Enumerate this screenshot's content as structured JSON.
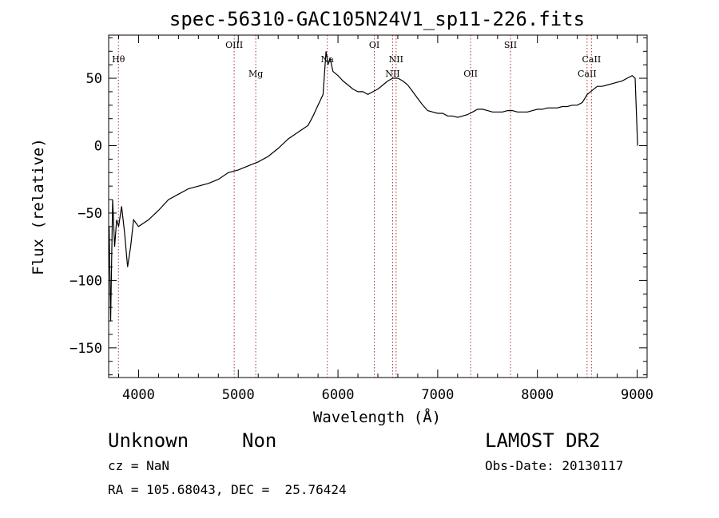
{
  "chart_data": {
    "type": "line",
    "title": "spec-56310-GAC105N24V1_sp11-226.fits",
    "xlabel": "Wavelength (Å)",
    "ylabel": "Flux (relative)",
    "xlim": [
      3700,
      9100
    ],
    "ylim": [
      -172,
      82
    ],
    "xticks": [
      4000,
      5000,
      6000,
      7000,
      8000,
      9000
    ],
    "yticks": [
      -150,
      -100,
      -50,
      0,
      50
    ],
    "xtick_labels": [
      "4000",
      "5000",
      "6000",
      "7000",
      "8000",
      "9000"
    ],
    "ytick_labels": [
      "−150",
      "−100",
      "−50",
      "0",
      "50"
    ],
    "grid": false,
    "line_color": "#000000",
    "marker_color": "#b03030",
    "series": [
      {
        "x": [
          3705,
          3720,
          3740,
          3760,
          3780,
          3800,
          3830,
          3860,
          3890,
          3920,
          3950,
          4000,
          4100,
          4200,
          4300,
          4400,
          4500,
          4600,
          4700,
          4800,
          4900,
          5000,
          5100,
          5200,
          5300,
          5400,
          5500,
          5600,
          5700,
          5750,
          5800,
          5850,
          5880,
          5900,
          5920,
          5950,
          6000,
          6050,
          6100,
          6150,
          6200,
          6250,
          6300,
          6350,
          6400,
          6450,
          6500,
          6550,
          6600,
          6650,
          6700,
          6750,
          6800,
          6850,
          6900,
          6950,
          7000,
          7050,
          7100,
          7150,
          7200,
          7250,
          7300,
          7350,
          7400,
          7450,
          7500,
          7550,
          7600,
          7650,
          7700,
          7750,
          7800,
          7850,
          7900,
          7950,
          8000,
          8050,
          8100,
          8150,
          8200,
          8250,
          8300,
          8350,
          8400,
          8450,
          8500,
          8550,
          8600,
          8650,
          8700,
          8750,
          8800,
          8850,
          8900,
          8950,
          8980,
          8995,
          9005
        ],
        "y": [
          -60,
          -130,
          -40,
          -75,
          -55,
          -60,
          -45,
          -65,
          -90,
          -75,
          -55,
          -60,
          -55,
          -48,
          -40,
          -36,
          -32,
          -30,
          -28,
          -25,
          -20,
          -18,
          -15,
          -12,
          -8,
          -2,
          5,
          10,
          15,
          22,
          30,
          38,
          70,
          60,
          65,
          55,
          52,
          48,
          45,
          42,
          40,
          40,
          38,
          40,
          42,
          45,
          48,
          50,
          50,
          48,
          45,
          40,
          35,
          30,
          26,
          25,
          24,
          24,
          22,
          22,
          21,
          22,
          23,
          25,
          27,
          27,
          26,
          25,
          25,
          25,
          26,
          26,
          25,
          25,
          25,
          26,
          27,
          27,
          28,
          28,
          28,
          29,
          29,
          30,
          30,
          32,
          38,
          41,
          44,
          44,
          45,
          46,
          47,
          48,
          50,
          52,
          50,
          20,
          0
        ]
      }
    ],
    "lines": [
      {
        "label": "Hθ",
        "x": 3798,
        "level": 1
      },
      {
        "label": "OIII",
        "x": 4959,
        "level": 0
      },
      {
        "label": "Mg",
        "x": 5175,
        "level": 2
      },
      {
        "label": "Na",
        "x": 5893,
        "level": 1
      },
      {
        "label": "OI",
        "x": 6364,
        "level": 0
      },
      {
        "label": "NII",
        "x": 6548,
        "level": 2
      },
      {
        "label": "NII",
        "x": 6583,
        "level": 1
      },
      {
        "label": "OII",
        "x": 7330,
        "level": 2
      },
      {
        "label": "SII",
        "x": 7730,
        "level": 0
      },
      {
        "label": "CaII",
        "x": 8498,
        "level": 2
      },
      {
        "label": "CaII",
        "x": 8542,
        "level": 1
      }
    ]
  },
  "info": {
    "object_class": "Unknown",
    "object_subclass": "Non",
    "survey": "LAMOST DR2",
    "cz": "cz = NaN",
    "obs_date": "Obs-Date: 20130117",
    "coords": "RA = 105.68043, DEC =  25.76424"
  }
}
